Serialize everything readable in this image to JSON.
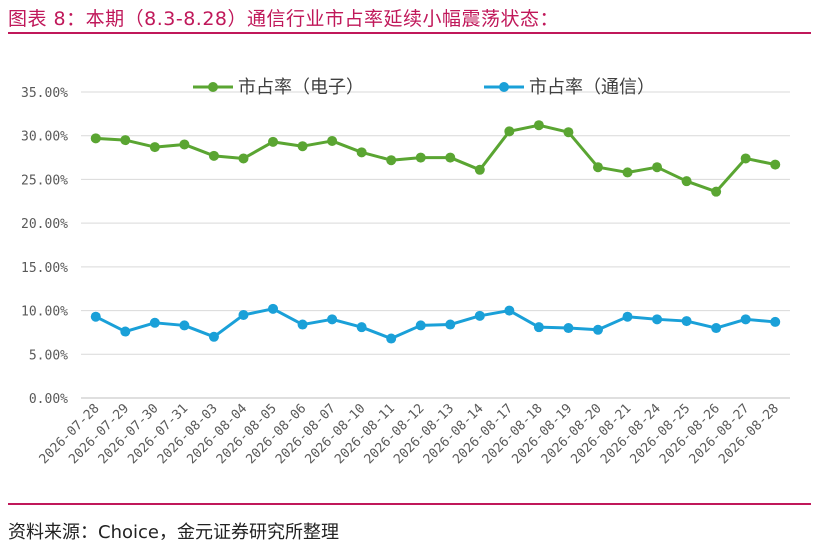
{
  "title": "图表 8：本期（8.3-8.28）通信行业市占率延续小幅震荡状态：",
  "source": "资料来源：Choice，金元证券研究所整理",
  "chart_data": {
    "type": "line",
    "title": "",
    "xlabel": "",
    "ylabel": "",
    "ylim": [
      0,
      35
    ],
    "yticks": [
      "0.00%",
      "5.00%",
      "10.00%",
      "15.00%",
      "20.00%",
      "25.00%",
      "30.00%",
      "35.00%"
    ],
    "grid": true,
    "legend_position": "top",
    "categories": [
      "2026-07-28",
      "2026-07-29",
      "2026-07-30",
      "2026-07-31",
      "2026-08-03",
      "2026-08-04",
      "2026-08-05",
      "2026-08-06",
      "2026-08-07",
      "2026-08-10",
      "2026-08-11",
      "2026-08-12",
      "2026-08-13",
      "2026-08-14",
      "2026-08-17",
      "2026-08-18",
      "2026-08-19",
      "2026-08-20",
      "2026-08-21",
      "2026-08-24",
      "2026-08-25",
      "2026-08-26",
      "2026-08-27",
      "2026-08-28"
    ],
    "series": [
      {
        "name": "市占率（电子）",
        "color": "#5aa532",
        "values": [
          29.7,
          29.5,
          28.7,
          29.0,
          27.7,
          27.4,
          29.3,
          28.8,
          29.4,
          28.1,
          27.2,
          27.5,
          27.5,
          26.1,
          30.5,
          31.2,
          30.4,
          26.4,
          25.8,
          26.4,
          24.8,
          23.6,
          27.4,
          26.7
        ]
      },
      {
        "name": "市占率（通信）",
        "color": "#1aa0d8",
        "values": [
          9.3,
          7.6,
          8.6,
          8.3,
          7.0,
          9.5,
          10.2,
          8.4,
          9.0,
          8.1,
          6.8,
          8.3,
          8.4,
          9.4,
          10.0,
          8.1,
          8.0,
          7.8,
          9.3,
          9.0,
          8.8,
          8.0,
          9.0,
          8.7
        ]
      }
    ]
  }
}
